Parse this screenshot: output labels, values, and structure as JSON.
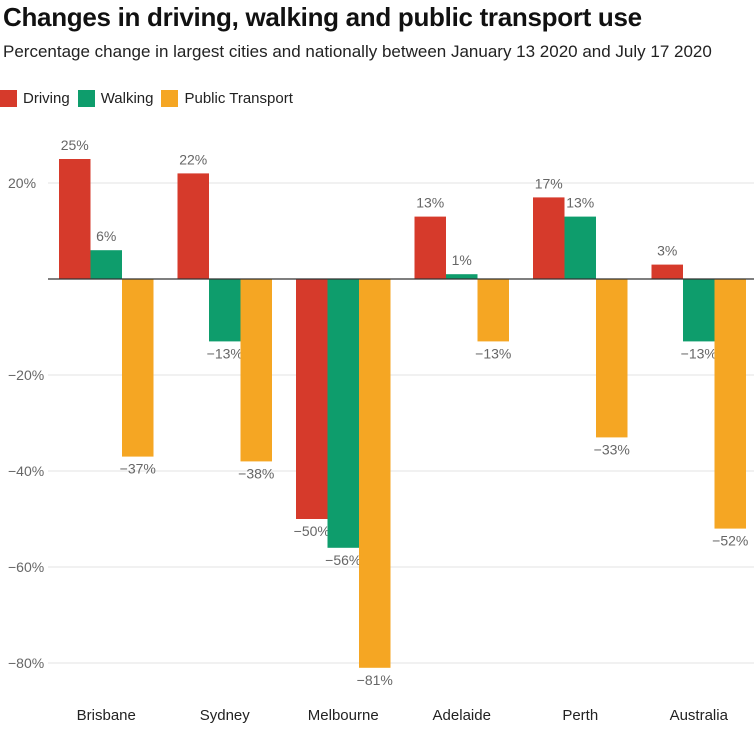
{
  "chart_data": {
    "type": "bar",
    "title": "Changes in driving, walking and public transport use",
    "subtitle": "Percentage change in largest cities and nationally between January 13 2020 and July 17 2020",
    "categories": [
      "Brisbane",
      "Sydney",
      "Melbourne",
      "Adelaide",
      "Perth",
      "Australia"
    ],
    "series": [
      {
        "name": "Driving",
        "color": "#d63a2b",
        "values": [
          25,
          22,
          -50,
          13,
          17,
          3
        ],
        "labels": [
          "25%",
          "22%",
          "−50%",
          "13%",
          "17%",
          "3%"
        ]
      },
      {
        "name": "Walking",
        "color": "#0e9d6c",
        "values": [
          6,
          -13,
          -56,
          1,
          13,
          -13
        ],
        "labels": [
          "6%",
          "−13%",
          "−56%",
          "1%",
          "13%",
          "−13%"
        ]
      },
      {
        "name": "Public Transport",
        "color": "#f5a623",
        "values": [
          -37,
          -38,
          -81,
          -13,
          -33,
          -52
        ],
        "labels": [
          "−37%",
          "−38%",
          "−81%",
          "−13%",
          "−33%",
          "−52%"
        ]
      }
    ],
    "yticks": [
      {
        "value": 20,
        "label": "20%"
      },
      {
        "value": -20,
        "label": "−20%"
      },
      {
        "value": -40,
        "label": "−40%"
      },
      {
        "value": -60,
        "label": "−60%"
      },
      {
        "value": -80,
        "label": "−80%"
      }
    ],
    "ylim": [
      -85,
      27
    ],
    "grid": true,
    "legend_position": "top-left"
  }
}
